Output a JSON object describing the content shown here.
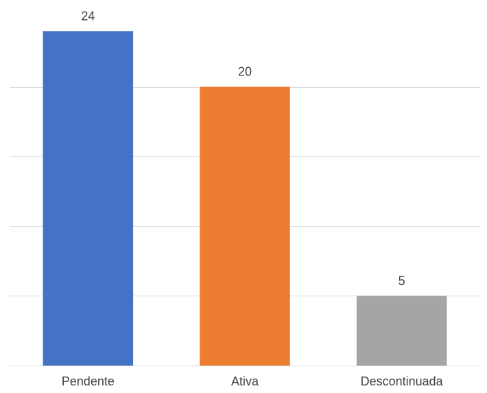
{
  "chart_data": {
    "type": "bar",
    "categories": [
      "Pendente",
      "Ativa",
      "Descontinuada"
    ],
    "values": [
      24,
      20,
      5
    ],
    "data_labels": [
      "24",
      "20",
      "5"
    ],
    "colors": [
      "#4472c4",
      "#ed7d31",
      "#a5a5a5"
    ],
    "ylim": [
      0,
      25
    ],
    "y_gridlines": [
      0,
      5,
      10,
      15,
      20,
      25
    ],
    "grid": true,
    "legend": "none",
    "title": "",
    "xlabel": "",
    "ylabel": ""
  }
}
